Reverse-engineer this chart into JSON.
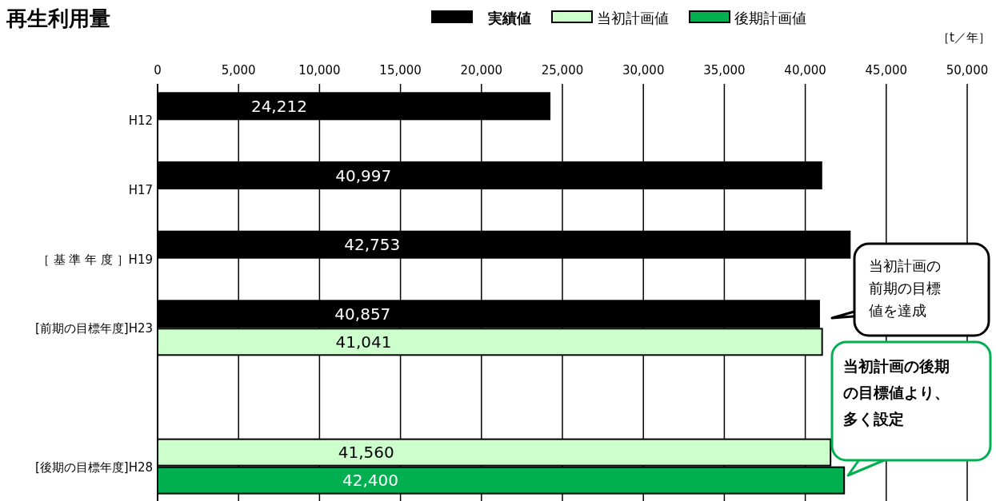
{
  "chart_data": {
    "type": "bar",
    "orientation": "horizontal",
    "title": "再生利用量",
    "xlabel": "［t／年］",
    "categories": [
      "H12",
      "H17",
      "［ 基 準 年 度 ］H19",
      "[前期の目標年度]H23",
      null,
      "[後期の目標年度]H28"
    ],
    "series": [
      {
        "name": "実績値",
        "color": "#000000",
        "values": [
          24212,
          40997,
          42753,
          40857,
          null,
          null
        ],
        "value_labels": [
          "24,212",
          "40,997",
          "42,753",
          "40,857",
          null,
          null
        ]
      },
      {
        "name": "当初計画値",
        "color": "#ccffcc",
        "values": [
          null,
          null,
          null,
          41041,
          null,
          41560
        ],
        "value_labels": [
          null,
          null,
          null,
          "41,041",
          null,
          "41,560"
        ]
      },
      {
        "name": "後期計画値",
        "color": "#00b050",
        "values": [
          null,
          null,
          null,
          null,
          null,
          42400
        ],
        "value_labels": [
          null,
          null,
          null,
          null,
          null,
          "42,400"
        ]
      }
    ],
    "xlim": [
      0,
      50000
    ],
    "xticks": [
      {
        "value": 0,
        "label": "0"
      },
      {
        "value": 5000,
        "label": "5,000"
      },
      {
        "value": 10000,
        "label": "10,000"
      },
      {
        "value": 15000,
        "label": "15,000"
      },
      {
        "value": 20000,
        "label": "20,000"
      },
      {
        "value": 25000,
        "label": "25,000"
      },
      {
        "value": 30000,
        "label": "30,000"
      },
      {
        "value": 35000,
        "label": "35,000"
      },
      {
        "value": 40000,
        "label": "40,000"
      },
      {
        "value": 45000,
        "label": "45,000"
      },
      {
        "value": 50000,
        "label": "50,000"
      }
    ],
    "grid": "x",
    "legend": "top",
    "annotations": [
      "当初計画の前期の目標値を達成",
      "当初計画の後期の目標値より、多く設定"
    ]
  }
}
